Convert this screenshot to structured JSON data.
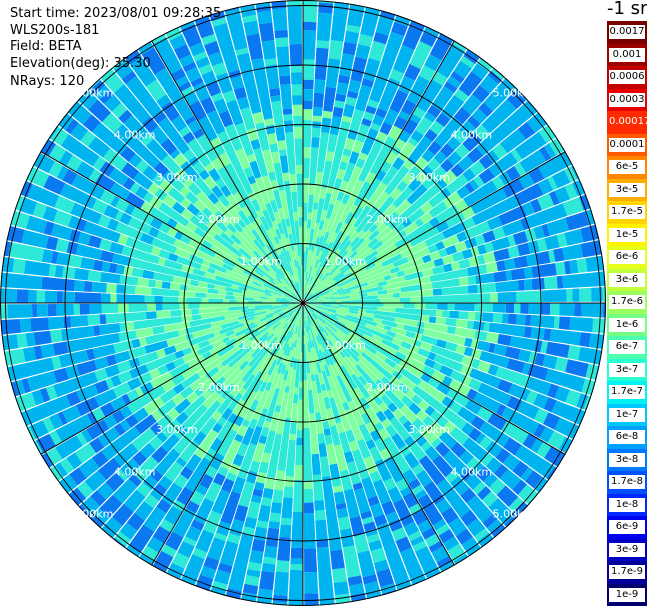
{
  "header": {
    "start_time": "Start time: 2023/08/01 09:28:35",
    "instrument": "WLS200s-181",
    "field": "Field: BETA",
    "elevation": "Elevation(deg): 35.30",
    "nrays": "NRays: 120"
  },
  "unit_label": "-1 sr",
  "range_labels": [
    "1.00km",
    "2.00km",
    "3.00km",
    "4.00km",
    "5.00km"
  ],
  "colorbar": {
    "levels": [
      {
        "label": "0.0017",
        "color": "#7a0000"
      },
      {
        "label": "0.001",
        "color": "#9e0000"
      },
      {
        "label": "0.0006",
        "color": "#c20000"
      },
      {
        "label": "0.0003",
        "color": "#e60000"
      },
      {
        "label": "0.00017",
        "color": "#ff2a00",
        "plain": true
      },
      {
        "label": "0.0001",
        "color": "#ff5a00"
      },
      {
        "label": "6e-5",
        "color": "#ff8600"
      },
      {
        "label": "3e-5",
        "color": "#ffae00"
      },
      {
        "label": "1.7e-5",
        "color": "#ffd400"
      },
      {
        "label": "1e-5",
        "color": "#fff200"
      },
      {
        "label": "6e-6",
        "color": "#e4ff1c"
      },
      {
        "label": "3e-6",
        "color": "#c2ff3c"
      },
      {
        "label": "1.7e-6",
        "color": "#9cff60"
      },
      {
        "label": "1e-6",
        "color": "#74ff86"
      },
      {
        "label": "6e-7",
        "color": "#4dffae"
      },
      {
        "label": "3e-7",
        "color": "#28ffd2"
      },
      {
        "label": "1.7e-7",
        "color": "#00f2f2"
      },
      {
        "label": "1e-7",
        "color": "#00c8ff"
      },
      {
        "label": "6e-8",
        "color": "#00a0ff"
      },
      {
        "label": "3e-8",
        "color": "#0078ff"
      },
      {
        "label": "1.7e-8",
        "color": "#0050ff"
      },
      {
        "label": "1e-8",
        "color": "#0028ff"
      },
      {
        "label": "6e-9",
        "color": "#0000f0"
      },
      {
        "label": "3e-9",
        "color": "#0000c4"
      },
      {
        "label": "1.7e-9",
        "color": "#000098"
      },
      {
        "label": "1e-9",
        "color": "#00006e"
      }
    ]
  },
  "colors": {
    "near_field": "#80ffa0",
    "mid_field": "#2ee8d8",
    "far_field": "#00b4f0",
    "speckle": "#0a78f0",
    "grid_line": "#000000",
    "range_text": "#ffffff"
  }
}
